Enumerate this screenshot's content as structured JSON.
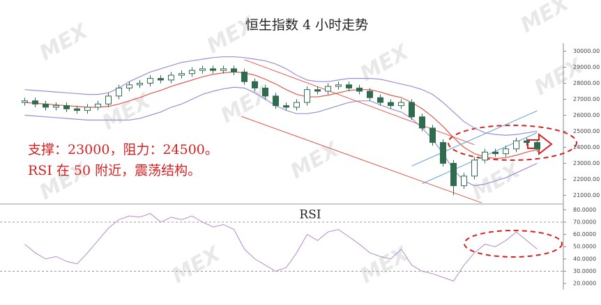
{
  "chart_data": {
    "type": "candlestick",
    "title": "恒生指数 4 小时走势",
    "watermark": "MEX",
    "categories": [
      null,
      null,
      null,
      null,
      null,
      null,
      null,
      null,
      null,
      null,
      null,
      null,
      null,
      null,
      null,
      null,
      null,
      null,
      null,
      null,
      null,
      null,
      null,
      null,
      null,
      null,
      null,
      null,
      null,
      null,
      null,
      null,
      null,
      null,
      null,
      null,
      null,
      null,
      null,
      null,
      null,
      null,
      null,
      null,
      null,
      null,
      null,
      null,
      null,
      null
    ],
    "open": [
      26800,
      26900,
      26700,
      26500,
      26600,
      26400,
      26300,
      26500,
      26700,
      27200,
      27700,
      27900,
      28000,
      28300,
      28200,
      28500,
      28600,
      28800,
      28900,
      28800,
      28900,
      28700,
      28100,
      27700,
      27200,
      26600,
      26500,
      26800,
      27600,
      27500,
      27800,
      27900,
      27700,
      27500,
      27100,
      26800,
      26600,
      26800,
      25900,
      25200,
      24300,
      23000,
      21600,
      22200,
      23200,
      23700,
      23600,
      23900,
      24400,
      24300
    ],
    "high": [
      27100,
      27100,
      26900,
      26800,
      26800,
      26600,
      26700,
      26900,
      27400,
      27900,
      28100,
      28200,
      28500,
      28500,
      28700,
      28800,
      29000,
      29100,
      29100,
      29100,
      29100,
      28900,
      28300,
      27900,
      27400,
      26800,
      27000,
      27800,
      27800,
      28000,
      28100,
      28100,
      27900,
      27700,
      27300,
      27000,
      27000,
      27000,
      26100,
      25400,
      24500,
      23200,
      22400,
      23400,
      23900,
      23900,
      24100,
      24600,
      24600,
      24500
    ],
    "low": [
      26600,
      26500,
      26300,
      26300,
      26200,
      26100,
      26100,
      26300,
      26500,
      27000,
      27500,
      27700,
      27800,
      28000,
      28000,
      28300,
      28400,
      28600,
      28600,
      28600,
      28500,
      27900,
      27500,
      27000,
      26400,
      26300,
      26300,
      26600,
      27300,
      27300,
      27600,
      27500,
      27300,
      26900,
      26600,
      26400,
      26400,
      25700,
      25000,
      24100,
      22800,
      21000,
      21400,
      22000,
      23000,
      23400,
      23400,
      23700,
      24100,
      23700
    ],
    "close": [
      26900,
      26700,
      26500,
      26600,
      26400,
      26300,
      26500,
      26700,
      27200,
      27700,
      27900,
      28000,
      28300,
      28200,
      28500,
      28600,
      28800,
      28900,
      28800,
      28900,
      28700,
      28100,
      27700,
      27200,
      26600,
      26500,
      26800,
      27600,
      27500,
      27800,
      27900,
      27700,
      27500,
      27100,
      26800,
      26600,
      26800,
      25900,
      25200,
      24300,
      23000,
      21600,
      22200,
      23200,
      23700,
      23600,
      23900,
      24400,
      24300,
      23900
    ],
    "up_color": "#ffffff",
    "down_color": "#2f6b4f",
    "lines": [
      {
        "color": "#9a8fd6",
        "values": [
          27600,
          27550,
          27500,
          27450,
          27400,
          27350,
          27300,
          27300,
          27400,
          27700,
          28100,
          28400,
          28700,
          28900,
          29100,
          29300,
          29400,
          29500,
          29600,
          29650,
          29650,
          29600,
          29500,
          29400,
          29200,
          28900,
          28500,
          28200,
          28100,
          28100,
          28200,
          28300,
          28300,
          28300,
          28250,
          28100,
          27950,
          27800,
          27600,
          27300,
          26800,
          26200,
          25600,
          25200,
          24900,
          24800,
          24750,
          24800,
          24900,
          25000
        ]
      },
      {
        "color": "#e0584a",
        "values": [
          26800,
          26750,
          26700,
          26650,
          26600,
          26550,
          26500,
          26500,
          26550,
          26700,
          26900,
          27100,
          27350,
          27550,
          27800,
          28000,
          28200,
          28400,
          28550,
          28650,
          28700,
          28650,
          28500,
          28250,
          27950,
          27600,
          27300,
          27150,
          27150,
          27250,
          27400,
          27550,
          27600,
          27600,
          27450,
          27250,
          27100,
          26800,
          26400,
          25900,
          25300,
          24600,
          24000,
          23600,
          23400,
          23300,
          23350,
          23500,
          23700,
          23850
        ]
      },
      {
        "color": "#9a8fd6",
        "values": [
          26000,
          25950,
          25900,
          25850,
          25800,
          25750,
          25700,
          25700,
          25700,
          25700,
          25700,
          25800,
          26000,
          26200,
          26500,
          26700,
          27000,
          27300,
          27500,
          27650,
          27750,
          27700,
          27400,
          27000,
          26600,
          26300,
          26100,
          26100,
          26200,
          26400,
          26600,
          26800,
          26900,
          26900,
          26650,
          26400,
          26200,
          25800,
          25200,
          24500,
          23600,
          22600,
          21900,
          21600,
          21700,
          21900,
          22100,
          22400,
          22700,
          23000
        ]
      }
    ],
    "trend_lines": [
      {
        "color": "#e0584a",
        "x": [
          21,
          43
        ],
        "values": [
          29470,
          24160
        ]
      },
      {
        "color": "#e0584a",
        "x": [
          20.7,
          43.7
        ],
        "values": [
          25930,
          20530
        ]
      },
      {
        "color": "#5b9bd5",
        "x": [
          37,
          49
        ],
        "values": [
          22830,
          26280
        ]
      },
      {
        "color": "#5b9bd5",
        "x": [
          38,
          49
        ],
        "values": [
          21730,
          24910
        ]
      }
    ],
    "annotations": [
      "支撑：23000，阻力：24500。",
      "RSI 在 50 附近，震荡结构。"
    ],
    "annotation_color": "#d62020",
    "ylim": [
      20500,
      30500
    ],
    "yticks": [
      {
        "value": 21000,
        "label": "21000.00"
      },
      {
        "value": 22000,
        "label": "22000.00"
      },
      {
        "value": 23000,
        "label": "23000.00"
      },
      {
        "value": 24000,
        "label": "24000.00"
      },
      {
        "value": 25000,
        "label": "25000.00"
      },
      {
        "value": 26000,
        "label": "26000.00"
      },
      {
        "value": 27000,
        "label": "27000.00"
      },
      {
        "value": 28000,
        "label": "28000.00"
      },
      {
        "value": 29000,
        "label": "29000.00"
      },
      {
        "value": 30000,
        "label": "30000.00"
      }
    ],
    "rsi": {
      "title": "RSI",
      "color": "#b58ac9",
      "values": [
        52,
        45,
        40,
        42,
        38,
        36,
        45,
        55,
        65,
        72,
        75,
        74,
        77,
        70,
        74,
        72,
        75,
        70,
        66,
        68,
        64,
        48,
        40,
        35,
        30,
        33,
        45,
        60,
        55,
        62,
        64,
        58,
        52,
        45,
        42,
        40,
        48,
        35,
        30,
        28,
        25,
        22,
        35,
        45,
        52,
        50,
        55,
        62,
        55,
        48
      ],
      "ylim": [
        15,
        83
      ],
      "yticks": [
        {
          "value": 20,
          "label": "20.0000"
        },
        {
          "value": 30,
          "label": "30.0000"
        },
        {
          "value": 40,
          "label": "40.0000"
        },
        {
          "value": 50,
          "label": "50.0000"
        },
        {
          "value": 60,
          "label": "60.0000"
        },
        {
          "value": 70,
          "label": "70.0000"
        },
        {
          "value": 80,
          "label": "80.0000"
        }
      ],
      "levels": [
        30,
        70
      ]
    }
  }
}
